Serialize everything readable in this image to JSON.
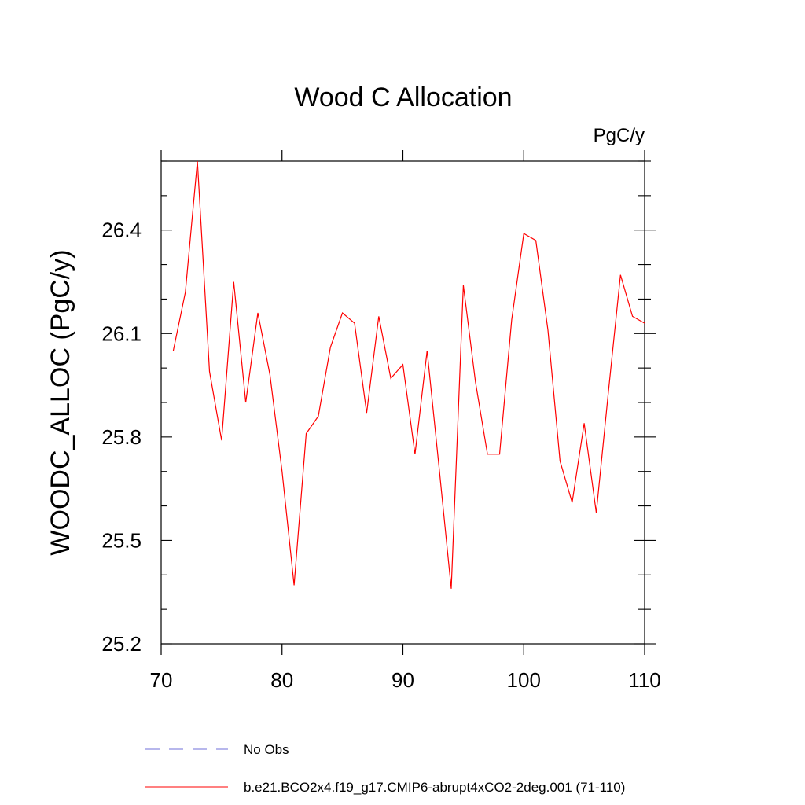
{
  "chart_data": {
    "type": "line",
    "title": "Wood C Allocation",
    "units": "PgC/y",
    "xlabel": "",
    "ylabel": "WOODC_ALLOC  (PgC/y)",
    "xlim": [
      70,
      110
    ],
    "ylim": [
      25.2,
      26.6
    ],
    "xticks": [
      70,
      80,
      90,
      100,
      110
    ],
    "xtick_labels": [
      "70",
      "80",
      "90",
      "100",
      "110"
    ],
    "yticks": [
      25.2,
      25.5,
      25.8,
      26.1,
      26.4
    ],
    "ytick_labels": [
      "25.2",
      "25.5",
      "25.8",
      "26.1",
      "26.4"
    ],
    "x_minor_step": 10,
    "y_minor_step": 0.1,
    "grid": false,
    "series": [
      {
        "name": "b.e21.BCO2x4.f19_g17.CMIP6-abrupt4xCO2-2deg.001 (71-110)",
        "color": "#ff0000",
        "style": "solid",
        "x": [
          71,
          72,
          73,
          74,
          75,
          76,
          77,
          78,
          79,
          80,
          81,
          82,
          83,
          84,
          85,
          86,
          87,
          88,
          89,
          90,
          91,
          92,
          93,
          94,
          95,
          96,
          97,
          98,
          99,
          100,
          101,
          102,
          103,
          104,
          105,
          106,
          107,
          108,
          109,
          110
        ],
        "y": [
          26.05,
          26.22,
          26.6,
          25.99,
          25.79,
          26.25,
          25.9,
          26.16,
          25.98,
          25.7,
          25.37,
          25.81,
          25.86,
          26.06,
          26.16,
          26.13,
          25.87,
          26.15,
          25.97,
          26.01,
          25.75,
          26.05,
          25.71,
          25.36,
          26.24,
          25.96,
          25.75,
          25.75,
          26.14,
          26.39,
          26.37,
          26.11,
          25.73,
          25.61,
          25.84,
          25.58,
          25.93,
          26.27,
          26.15,
          26.13
        ]
      }
    ],
    "legend": {
      "placement": "bottom-left",
      "entries": [
        {
          "label": "No Obs",
          "color": "#6f6fd8",
          "style": "dashed"
        },
        {
          "label": "b.e21.BCO2x4.f19_g17.CMIP6-abrupt4xCO2-2deg.001 (71-110)",
          "color": "#ff0000",
          "style": "solid"
        }
      ]
    }
  }
}
